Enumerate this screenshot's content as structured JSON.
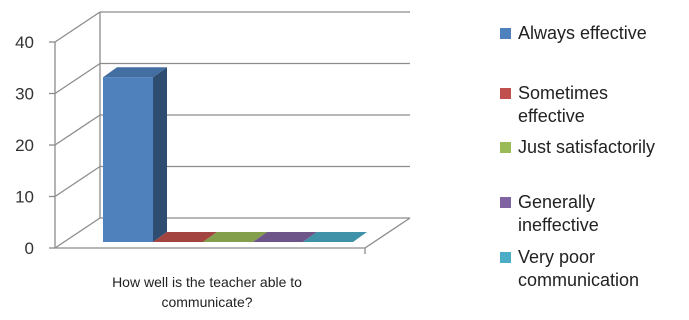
{
  "chart_data": {
    "type": "bar",
    "style": "3d-clustered-column",
    "categories": [
      "How well is the teacher able to\ncommunicate?"
    ],
    "series": [
      {
        "name": "Always effective",
        "values": [
          32
        ],
        "color": "#4F81BD"
      },
      {
        "name": "Sometimes effective",
        "values": [
          0
        ],
        "color": "#C0504D"
      },
      {
        "name": "Just satisfactorily",
        "values": [
          0
        ],
        "color": "#9BBB59"
      },
      {
        "name": "Generally ineffective",
        "values": [
          0
        ],
        "color": "#8064A2"
      },
      {
        "name": "Very poor communication",
        "values": [
          0
        ],
        "color": "#4BACC6"
      }
    ],
    "yticks": [
      0,
      10,
      20,
      30,
      40
    ],
    "ylim": [
      0,
      40
    ],
    "grid": true,
    "legend_position": "right"
  },
  "legend": {
    "items": [
      {
        "label": "Always effective",
        "color": "#4F81BD"
      },
      {
        "label": "Sometimes\neffective",
        "color": "#C0504D"
      },
      {
        "label": "Just satisfactorily",
        "color": "#9BBB59"
      },
      {
        "label": "Generally\nineffective",
        "color": "#8064A2"
      },
      {
        "label": "Very poor\ncommunication",
        "color": "#4BACC6"
      }
    ]
  }
}
